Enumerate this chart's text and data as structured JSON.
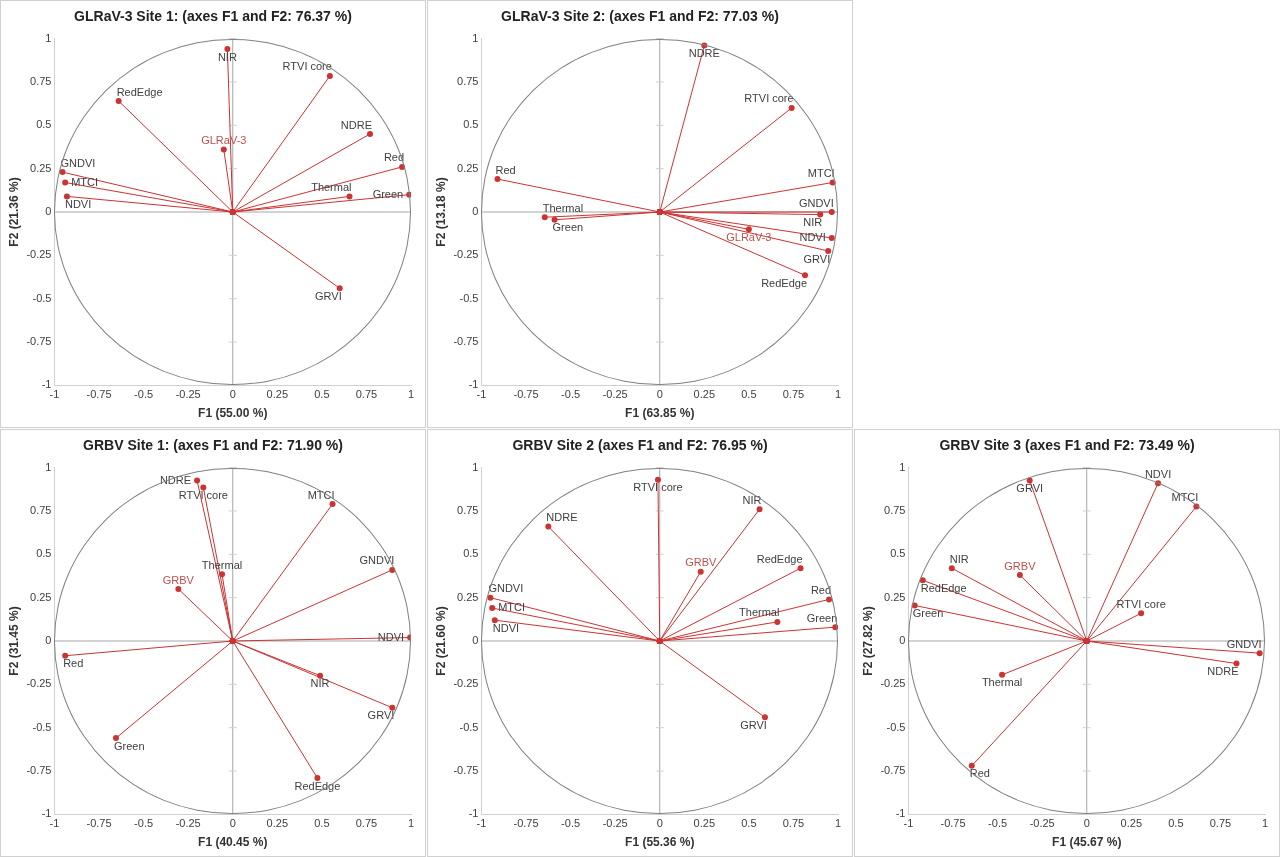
{
  "chart_data": [
    {
      "type": "line",
      "title": "GLRaV-3 Site 1: (axes F1 and F2: 76.37 %)",
      "xlabel": "F1 (55.00 %)",
      "ylabel": "F2 (21.36 %)",
      "xlim": [
        -1,
        1
      ],
      "ylim": [
        -1,
        1
      ],
      "xticks": [
        -1,
        -0.75,
        -0.5,
        -0.25,
        0,
        0.25,
        0.5,
        0.75,
        1
      ],
      "yticks": [
        -1,
        -0.75,
        -0.5,
        -0.25,
        0,
        0.25,
        0.5,
        0.75,
        1
      ],
      "grid": false,
      "legend": false,
      "marker": "circle",
      "ref_lines": [
        {
          "axis": "x",
          "value": 0,
          "color": "#a6a6a6"
        },
        {
          "axis": "y",
          "value": 0,
          "color": "#a6a6a6"
        }
      ],
      "annotations": [
        {
          "text": "GLRaV-3",
          "x": -0.05,
          "y": 0.36
        }
      ],
      "series": [
        {
          "name": "NIR",
          "color": "#cc3333",
          "x": [
            0,
            -0.03
          ],
          "values": [
            0,
            0.94
          ]
        },
        {
          "name": "RTVI core",
          "color": "#cc3333",
          "x": [
            0,
            0.545
          ],
          "values": [
            0,
            0.785
          ]
        },
        {
          "name": "RedEdge",
          "color": "#cc3333",
          "x": [
            0,
            -0.64
          ],
          "values": [
            0,
            0.64
          ]
        },
        {
          "name": "NDRE",
          "color": "#cc3333",
          "x": [
            0,
            0.77
          ],
          "values": [
            0,
            0.45
          ]
        },
        {
          "color": "#cc3333",
          "x": [
            0,
            -0.05
          ],
          "values": [
            0,
            0.36
          ]
        },
        {
          "name": "Red",
          "color": "#cc3333",
          "x": [
            0,
            0.95
          ],
          "values": [
            0,
            0.26
          ]
        },
        {
          "name": "GNDVI",
          "color": "#cc3333",
          "x": [
            0,
            -0.955
          ],
          "values": [
            0,
            0.23
          ]
        },
        {
          "name": "MTCI",
          "color": "#cc3333",
          "x": [
            0,
            -0.94
          ],
          "values": [
            0,
            0.17
          ]
        },
        {
          "name": "NDVI",
          "color": "#cc3333",
          "x": [
            0,
            -0.93
          ],
          "values": [
            0,
            0.09
          ]
        },
        {
          "name": "Thermal",
          "color": "#cc3333",
          "x": [
            0,
            0.655
          ],
          "values": [
            0,
            0.09
          ]
        },
        {
          "name": "Green",
          "color": "#cc3333",
          "x": [
            0,
            0.99
          ],
          "values": [
            0,
            0.1
          ]
        },
        {
          "name": "GRVI",
          "color": "#cc3333",
          "x": [
            0,
            0.6
          ],
          "values": [
            0,
            -0.44
          ]
        }
      ]
    },
    {
      "type": "line",
      "title": "GLRaV-3 Site 2: (axes F1 and F2: 77.03 %)",
      "xlabel": "F1 (63.85 %)",
      "ylabel": "F2 (13.18 %)",
      "xlim": [
        -1,
        1
      ],
      "ylim": [
        -1,
        1
      ],
      "xticks": [
        -1,
        -0.75,
        -0.5,
        -0.25,
        0,
        0.25,
        0.5,
        0.75,
        1
      ],
      "yticks": [
        -1,
        -0.75,
        -0.5,
        -0.25,
        0,
        0.25,
        0.5,
        0.75,
        1
      ],
      "grid": false,
      "legend": false,
      "marker": "circle",
      "ref_lines": [
        {
          "axis": "x",
          "value": 0,
          "color": "#a6a6a6"
        },
        {
          "axis": "y",
          "value": 0,
          "color": "#a6a6a6"
        }
      ],
      "annotations": [
        {
          "text": "GLRaV-3",
          "x": 0.5,
          "y": -0.1
        }
      ],
      "series": [
        {
          "name": "NDRE",
          "color": "#cc3333",
          "x": [
            0,
            0.25
          ],
          "values": [
            0,
            0.96
          ]
        },
        {
          "name": "RTVI core",
          "color": "#cc3333",
          "x": [
            0,
            0.74
          ],
          "values": [
            0,
            0.6
          ]
        },
        {
          "name": "Red",
          "color": "#cc3333",
          "x": [
            0,
            -0.91
          ],
          "values": [
            0,
            0.19
          ]
        },
        {
          "name": "MTCI",
          "color": "#cc3333",
          "x": [
            0,
            0.97
          ],
          "values": [
            0,
            0.17
          ]
        },
        {
          "name": "GNDVI",
          "color": "#cc3333",
          "x": [
            0,
            0.965
          ],
          "values": [
            0,
            0
          ]
        },
        {
          "name": "NIR",
          "color": "#cc3333",
          "x": [
            0,
            0.9
          ],
          "values": [
            0,
            -0.015
          ]
        },
        {
          "name": "Thermal",
          "color": "#cc3333",
          "x": [
            0,
            -0.645
          ],
          "values": [
            0,
            -0.03
          ]
        },
        {
          "name": "Green",
          "color": "#cc3333",
          "x": [
            0,
            -0.59
          ],
          "values": [
            0,
            -0.045
          ]
        },
        {
          "color": "#cc3333",
          "x": [
            0,
            0.5
          ],
          "values": [
            0,
            -0.1
          ]
        },
        {
          "name": "NDVI",
          "color": "#cc3333",
          "x": [
            0,
            0.965
          ],
          "values": [
            0,
            -0.15
          ]
        },
        {
          "name": "GRVI",
          "color": "#cc3333",
          "x": [
            0,
            0.945
          ],
          "values": [
            0,
            -0.225
          ]
        },
        {
          "name": "RedEdge",
          "color": "#cc3333",
          "x": [
            0,
            0.815
          ],
          "values": [
            0,
            -0.365
          ]
        }
      ]
    },
    {
      "type": "line",
      "title": "GRBV Site 1: (axes F1 and F2: 71.90 %)",
      "xlabel": "F1 (40.45 %)",
      "ylabel": "F2 (31.45 %)",
      "xlim": [
        -1,
        1
      ],
      "ylim": [
        -1,
        1
      ],
      "xticks": [
        -1,
        -0.75,
        -0.5,
        -0.25,
        0,
        0.25,
        0.5,
        0.75,
        1
      ],
      "yticks": [
        -1,
        -0.75,
        -0.5,
        -0.25,
        0,
        0.25,
        0.5,
        0.75,
        1
      ],
      "grid": false,
      "legend": false,
      "marker": "circle",
      "ref_lines": [
        {
          "axis": "x",
          "value": 0,
          "color": "#a6a6a6"
        },
        {
          "axis": "y",
          "value": 0,
          "color": "#a6a6a6"
        }
      ],
      "annotations": [
        {
          "text": "GRBV",
          "x": -0.305,
          "y": 0.3
        }
      ],
      "series": [
        {
          "name": "NDRE",
          "color": "#cc3333",
          "x": [
            0,
            -0.2
          ],
          "values": [
            0,
            0.925
          ]
        },
        {
          "name": "RTVI core",
          "color": "#cc3333",
          "x": [
            0,
            -0.165
          ],
          "values": [
            0,
            0.885
          ]
        },
        {
          "name": "MTCI",
          "color": "#cc3333",
          "x": [
            0,
            0.56
          ],
          "values": [
            0,
            0.79
          ]
        },
        {
          "name": "GNDVI",
          "color": "#cc3333",
          "x": [
            0,
            0.895
          ],
          "values": [
            0,
            0.41
          ]
        },
        {
          "name": "Thermal",
          "color": "#cc3333",
          "x": [
            0,
            -0.06
          ],
          "values": [
            0,
            0.385
          ]
        },
        {
          "color": "#cc3333",
          "x": [
            0,
            -0.305
          ],
          "values": [
            0,
            0.3
          ]
        },
        {
          "name": "NDVI",
          "color": "#cc3333",
          "x": [
            0,
            0.995
          ],
          "values": [
            0,
            0.02
          ]
        },
        {
          "name": "Red",
          "color": "#cc3333",
          "x": [
            0,
            -0.94
          ],
          "values": [
            0,
            -0.085
          ]
        },
        {
          "name": "NIR",
          "color": "#cc3333",
          "x": [
            0,
            0.49
          ],
          "values": [
            0,
            -0.2
          ]
        },
        {
          "name": "GRVI",
          "color": "#cc3333",
          "x": [
            0,
            0.895
          ],
          "values": [
            0,
            -0.385
          ]
        },
        {
          "name": "Green",
          "color": "#cc3333",
          "x": [
            0,
            -0.655
          ],
          "values": [
            0,
            -0.56
          ]
        },
        {
          "name": "RedEdge",
          "color": "#cc3333",
          "x": [
            0,
            0.475
          ],
          "values": [
            0,
            -0.79
          ]
        }
      ]
    },
    {
      "type": "line",
      "title": "GRBV Site 2 (axes F1 and F2: 76.95 %)",
      "xlabel": "F1 (55.36 %)",
      "ylabel": "F2 (21.60 %)",
      "xlim": [
        -1,
        1
      ],
      "ylim": [
        -1,
        1
      ],
      "xticks": [
        -1,
        -0.75,
        -0.5,
        -0.25,
        0,
        0.25,
        0.5,
        0.75,
        1
      ],
      "yticks": [
        -1,
        -0.75,
        -0.5,
        -0.25,
        0,
        0.25,
        0.5,
        0.75,
        1
      ],
      "grid": false,
      "legend": false,
      "marker": "circle",
      "ref_lines": [
        {
          "axis": "x",
          "value": 0,
          "color": "#a6a6a6"
        },
        {
          "axis": "y",
          "value": 0,
          "color": "#a6a6a6"
        }
      ],
      "annotations": [
        {
          "text": "GRBV",
          "x": 0.23,
          "y": 0.4
        }
      ],
      "series": [
        {
          "name": "RTVI core",
          "color": "#cc3333",
          "x": [
            0,
            -0.01
          ],
          "values": [
            0,
            0.93
          ]
        },
        {
          "name": "NIR",
          "color": "#cc3333",
          "x": [
            0,
            0.56
          ],
          "values": [
            0,
            0.76
          ]
        },
        {
          "name": "NDRE",
          "color": "#cc3333",
          "x": [
            0,
            -0.625
          ],
          "values": [
            0,
            0.66
          ]
        },
        {
          "color": "#cc3333",
          "x": [
            0,
            0.23
          ],
          "values": [
            0,
            0.4
          ]
        },
        {
          "name": "RedEdge",
          "color": "#cc3333",
          "x": [
            0,
            0.79
          ],
          "values": [
            0,
            0.42
          ]
        },
        {
          "name": "GNDVI",
          "color": "#cc3333",
          "x": [
            0,
            -0.95
          ],
          "values": [
            0,
            0.25
          ]
        },
        {
          "name": "Red",
          "color": "#cc3333",
          "x": [
            0,
            0.95
          ],
          "values": [
            0,
            0.24
          ]
        },
        {
          "name": "MTCI",
          "color": "#cc3333",
          "x": [
            0,
            -0.94
          ],
          "values": [
            0,
            0.19
          ]
        },
        {
          "name": "NDVI",
          "color": "#cc3333",
          "x": [
            0,
            -0.925
          ],
          "values": [
            0,
            0.12
          ]
        },
        {
          "name": "Thermal",
          "color": "#cc3333",
          "x": [
            0,
            0.66
          ],
          "values": [
            0,
            0.11
          ]
        },
        {
          "name": "Green",
          "color": "#cc3333",
          "x": [
            0,
            0.985
          ],
          "values": [
            0,
            0.08
          ]
        },
        {
          "name": "GRVI",
          "color": "#cc3333",
          "x": [
            0,
            0.59
          ],
          "values": [
            0,
            -0.44
          ]
        }
      ]
    },
    {
      "type": "line",
      "title": "GRBV Site 3 (axes F1 and F2: 73.49 %)",
      "xlabel": "F1 (45.67 %)",
      "ylabel": "F2 (27.82 %)",
      "xlim": [
        -1,
        1
      ],
      "ylim": [
        -1,
        1
      ],
      "xticks": [
        -1,
        -0.75,
        -0.5,
        -0.25,
        0,
        0.25,
        0.5,
        0.75,
        1
      ],
      "yticks": [
        -1,
        -0.75,
        -0.5,
        -0.25,
        0,
        0.25,
        0.5,
        0.75,
        1
      ],
      "grid": false,
      "legend": false,
      "marker": "circle",
      "ref_lines": [
        {
          "axis": "x",
          "value": 0,
          "color": "#a6a6a6"
        },
        {
          "axis": "y",
          "value": 0,
          "color": "#a6a6a6"
        }
      ],
      "annotations": [
        {
          "text": "GRBV",
          "x": -0.375,
          "y": 0.38
        }
      ],
      "series": [
        {
          "name": "GRVI",
          "color": "#cc3333",
          "x": [
            0,
            -0.32
          ],
          "values": [
            0,
            0.925
          ]
        },
        {
          "name": "NDVI",
          "color": "#cc3333",
          "x": [
            0,
            0.4
          ],
          "values": [
            0,
            0.91
          ]
        },
        {
          "name": "MTCI",
          "color": "#cc3333",
          "x": [
            0,
            0.615
          ],
          "values": [
            0,
            0.775
          ]
        },
        {
          "name": "NIR",
          "color": "#cc3333",
          "x": [
            0,
            -0.757
          ],
          "values": [
            0,
            0.42
          ]
        },
        {
          "color": "#cc3333",
          "x": [
            0,
            -0.375
          ],
          "values": [
            0,
            0.38
          ]
        },
        {
          "name": "RedEdge",
          "color": "#cc3333",
          "x": [
            0,
            -0.92
          ],
          "values": [
            0,
            0.35
          ]
        },
        {
          "name": "Green",
          "color": "#cc3333",
          "x": [
            0,
            -0.965
          ],
          "values": [
            0,
            0.205
          ]
        },
        {
          "name": "RTVI core",
          "color": "#cc3333",
          "x": [
            0,
            0.305
          ],
          "values": [
            0,
            0.16
          ]
        },
        {
          "name": "GNDVI",
          "color": "#cc3333",
          "x": [
            0,
            0.97
          ],
          "values": [
            0,
            -0.07
          ]
        },
        {
          "name": "NDRE",
          "color": "#cc3333",
          "x": [
            0,
            0.84
          ],
          "values": [
            0,
            -0.13
          ]
        },
        {
          "name": "Thermal",
          "color": "#cc3333",
          "x": [
            0,
            -0.475
          ],
          "values": [
            0,
            -0.195
          ]
        },
        {
          "name": "Red",
          "color": "#cc3333",
          "x": [
            0,
            -0.645
          ],
          "values": [
            0,
            -0.72
          ]
        }
      ]
    }
  ]
}
